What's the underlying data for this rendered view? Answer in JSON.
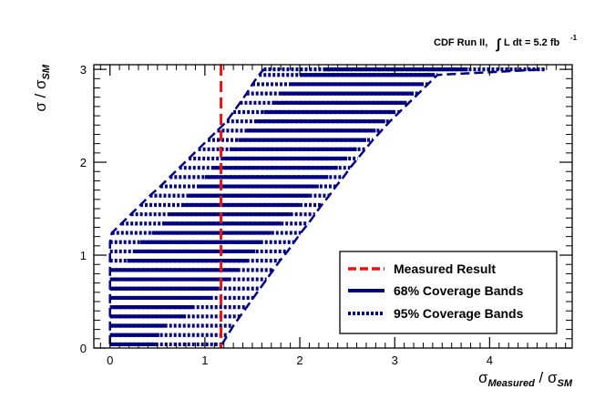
{
  "chart_data": {
    "type": "band",
    "title": "CDF Run II,",
    "luminosity_text": "L dt = 5.2 fb",
    "luminosity_sup": "-1",
    "xlabel": {
      "main": "σ",
      "sub": "Measured",
      "sep": " / ",
      "main2": "σ",
      "sub2": "SM"
    },
    "ylabel": {
      "main": "σ",
      "sep": " / ",
      "main2": "σ",
      "sub2": "SM"
    },
    "xlim": [
      -0.17,
      4.87
    ],
    "ylim": [
      0,
      3.05
    ],
    "x_ticks": [
      0,
      1,
      2,
      3,
      4
    ],
    "y_ticks": [
      0,
      1,
      2,
      3
    ],
    "measured_result": 1.17,
    "legend": {
      "position": "bottom-right",
      "entries": [
        {
          "label": "Measured Result",
          "style": "dashed",
          "color": "#ee1111"
        },
        {
          "label": "68% Coverage Bands",
          "style": "solid",
          "color": "#000080"
        },
        {
          "label": "95% Coverage Bands",
          "style": "dotted",
          "color": "#000080"
        }
      ]
    },
    "colors": {
      "band": "#000080",
      "measured": "#ee1111",
      "axis": "#000000"
    },
    "rows": [
      {
        "y": 0.04,
        "b95": [
          0.0,
          1.18
        ],
        "b68": [
          0.0,
          0.48
        ]
      },
      {
        "y": 0.14,
        "b95": [
          0.0,
          1.24
        ],
        "b68": [
          0.0,
          0.52
        ]
      },
      {
        "y": 0.24,
        "b95": [
          0.0,
          1.3
        ],
        "b68": [
          0.0,
          0.6
        ]
      },
      {
        "y": 0.34,
        "b95": [
          0.0,
          1.37
        ],
        "b68": [
          0.0,
          0.8
        ]
      },
      {
        "y": 0.44,
        "b95": [
          0.0,
          1.44
        ],
        "b68": [
          0.0,
          0.88
        ]
      },
      {
        "y": 0.54,
        "b95": [
          0.0,
          1.51
        ],
        "b68": [
          0.0,
          1.08
        ]
      },
      {
        "y": 0.64,
        "b95": [
          0.0,
          1.58
        ],
        "b68": [
          0.0,
          1.15
        ]
      },
      {
        "y": 0.74,
        "b95": [
          0.0,
          1.65
        ],
        "b68": [
          0.0,
          1.25
        ]
      },
      {
        "y": 0.84,
        "b95": [
          0.0,
          1.72
        ],
        "b68": [
          0.0,
          1.35
        ]
      },
      {
        "y": 0.94,
        "b95": [
          0.0,
          1.79
        ],
        "b68": [
          0.18,
          1.45
        ]
      },
      {
        "y": 1.04,
        "b95": [
          0.0,
          1.87
        ],
        "b68": [
          0.25,
          1.53
        ]
      },
      {
        "y": 1.14,
        "b95": [
          0.0,
          1.94
        ],
        "b68": [
          0.32,
          1.61
        ]
      },
      {
        "y": 1.24,
        "b95": [
          0.02,
          2.01
        ],
        "b68": [
          0.44,
          1.7
        ]
      },
      {
        "y": 1.34,
        "b95": [
          0.12,
          2.09
        ],
        "b68": [
          0.55,
          1.8
        ]
      },
      {
        "y": 1.44,
        "b95": [
          0.22,
          2.16
        ],
        "b68": [
          0.62,
          1.9
        ]
      },
      {
        "y": 1.54,
        "b95": [
          0.32,
          2.23
        ],
        "b68": [
          0.75,
          2.0
        ]
      },
      {
        "y": 1.64,
        "b95": [
          0.42,
          2.31
        ],
        "b68": [
          0.83,
          2.1
        ]
      },
      {
        "y": 1.74,
        "b95": [
          0.53,
          2.38
        ],
        "b68": [
          0.92,
          2.2
        ]
      },
      {
        "y": 1.84,
        "b95": [
          0.63,
          2.46
        ],
        "b68": [
          1.0,
          2.3
        ]
      },
      {
        "y": 1.94,
        "b95": [
          0.73,
          2.53
        ],
        "b68": [
          1.08,
          2.4
        ]
      },
      {
        "y": 2.04,
        "b95": [
          0.83,
          2.61
        ],
        "b68": [
          1.17,
          2.5
        ]
      },
      {
        "y": 2.14,
        "b95": [
          0.93,
          2.69
        ],
        "b68": [
          1.26,
          2.6
        ]
      },
      {
        "y": 2.24,
        "b95": [
          1.03,
          2.77
        ],
        "b68": [
          1.35,
          2.7
        ]
      },
      {
        "y": 2.34,
        "b95": [
          1.13,
          2.86
        ],
        "b68": [
          1.44,
          2.8
        ]
      },
      {
        "y": 2.44,
        "b95": [
          1.23,
          2.95
        ],
        "b68": [
          1.53,
          2.9
        ]
      },
      {
        "y": 2.54,
        "b95": [
          1.3,
          3.05
        ],
        "b68": [
          1.62,
          3.0
        ]
      },
      {
        "y": 2.64,
        "b95": [
          1.37,
          3.15
        ],
        "b68": [
          1.71,
          3.1
        ]
      },
      {
        "y": 2.74,
        "b95": [
          1.44,
          3.25
        ],
        "b68": [
          1.8,
          3.2
        ]
      },
      {
        "y": 2.84,
        "b95": [
          1.5,
          3.35
        ],
        "b68": [
          1.9,
          3.3
        ]
      },
      {
        "y": 2.94,
        "b95": [
          1.57,
          3.45
        ],
        "b68": [
          2.0,
          3.4
        ]
      },
      {
        "y": 3.0,
        "b95": [
          1.62,
          4.58
        ],
        "b68": [
          2.25,
          3.77
        ]
      }
    ]
  }
}
